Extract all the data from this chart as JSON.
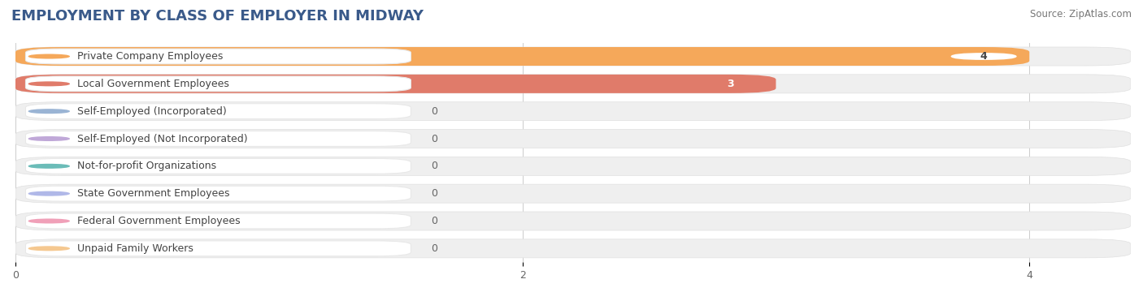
{
  "title": "EMPLOYMENT BY CLASS OF EMPLOYER IN MIDWAY",
  "source": "Source: ZipAtlas.com",
  "categories": [
    "Private Company Employees",
    "Local Government Employees",
    "Self-Employed (Incorporated)",
    "Self-Employed (Not Incorporated)",
    "Not-for-profit Organizations",
    "State Government Employees",
    "Federal Government Employees",
    "Unpaid Family Workers"
  ],
  "values": [
    4,
    3,
    0,
    0,
    0,
    0,
    0,
    0
  ],
  "bar_colors": [
    "#f5a85a",
    "#e07b6a",
    "#9ab4d4",
    "#c0a8d8",
    "#6bbcb8",
    "#b0b8e8",
    "#f0a0b8",
    "#f5c890"
  ],
  "dot_colors": [
    "#f5a85a",
    "#e07b6a",
    "#9ab4d4",
    "#c0a8d8",
    "#6bbcb8",
    "#b0b8e8",
    "#f0a0b8",
    "#f5c890"
  ],
  "background_color": "#ffffff",
  "row_bg_color": "#f0f0f0",
  "xlim": [
    0,
    4.4
  ],
  "xticks": [
    0,
    2,
    4
  ],
  "title_fontsize": 13,
  "label_fontsize": 9,
  "value_fontsize": 9
}
